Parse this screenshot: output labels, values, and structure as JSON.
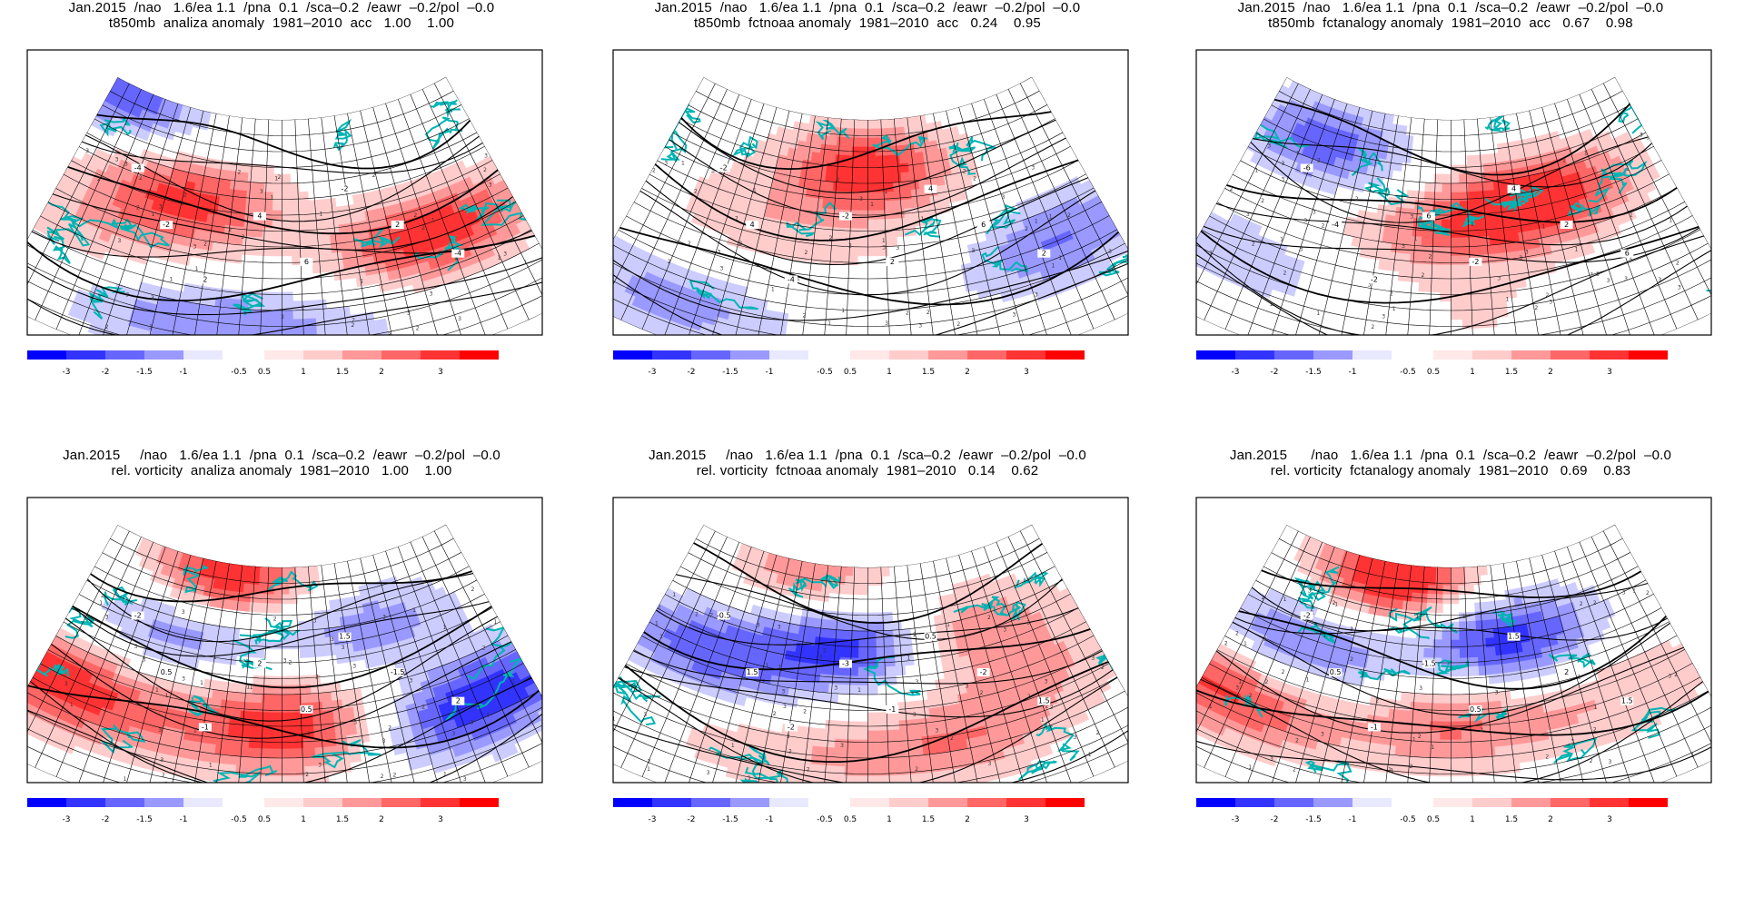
{
  "panels": [
    {
      "id": "p1",
      "title1": "Jan.2015  /nao   1.6/ea 1.1  /pna  0.1  /sca–0.2  /eawr  –0.2/pol  –0.0",
      "title2": "t850mb  analiza anomaly  1981–2010  acc   1.00    1.00",
      "pattern": [
        [
          0.28,
          0.35,
          2.2
        ],
        [
          0.82,
          0.55,
          2.4
        ],
        [
          0.06,
          0.05,
          -1.8
        ],
        [
          0.3,
          0.82,
          -1.2
        ],
        [
          0.55,
          0.82,
          -0.8
        ],
        [
          0.12,
          0.6,
          0.9
        ]
      ],
      "labels": [
        "-4",
        "-2",
        "2",
        "4",
        "6",
        "-2",
        "2",
        "-4"
      ]
    },
    {
      "id": "p2",
      "title1": "Jan.2015  /nao   1.6/ea 1.1  /pna  0.1  /sca–0.2  /eawr  –0.2/pol  –0.0",
      "title2": "t850mb  fctnoaa anomaly  1981–2010  acc   0.24    0.95",
      "pattern": [
        [
          0.5,
          0.2,
          2.4
        ],
        [
          0.25,
          0.45,
          0.8
        ],
        [
          0.88,
          0.62,
          -1.6
        ],
        [
          0.15,
          0.85,
          -1.2
        ],
        [
          0.6,
          0.55,
          0.4
        ]
      ],
      "labels": [
        "-2",
        "4",
        "-4",
        "-2",
        "2",
        "4",
        "6",
        "2"
      ]
    },
    {
      "id": "p3",
      "title1": "Jan.2015  /nao   1.6/ea 1.1  /pna  0.1  /sca–0.2  /eawr  –0.2/pol  –0.0",
      "title2": "t850mb  fctanalogy anomaly  1981–2010  acc   0.67    0.98",
      "pattern": [
        [
          0.7,
          0.35,
          2.6
        ],
        [
          0.45,
          0.45,
          1.2
        ],
        [
          0.18,
          0.18,
          -1.8
        ],
        [
          0.1,
          0.7,
          -0.8
        ],
        [
          0.55,
          0.8,
          0.5
        ]
      ],
      "labels": [
        "-6",
        "-4",
        "-2",
        "6",
        "-2",
        "4",
        "2",
        "6"
      ]
    },
    {
      "id": "p4",
      "title1": "Jan.2015     /nao   1.6/ea 1.1  /pna  0.1  /sca–0.2  /eawr  –0.2/pol  –0.0",
      "title2": "rel. vorticity  analiza anomaly  1981–2010   1.00    1.00",
      "pattern": [
        [
          0.35,
          0.06,
          2.6
        ],
        [
          0.28,
          0.3,
          -1.6
        ],
        [
          0.7,
          0.28,
          -1.4
        ],
        [
          0.05,
          0.65,
          2.4
        ],
        [
          0.52,
          0.65,
          2.3
        ],
        [
          0.88,
          0.68,
          -2.6
        ],
        [
          0.5,
          0.45,
          0.6
        ]
      ],
      "labels": [
        "-2",
        "0.5",
        "-1",
        "2",
        "0.5",
        "1.5",
        "-1.5",
        "2"
      ]
    },
    {
      "id": "p5",
      "title1": "Jan.2015     /nao   1.6/ea 1.1  /pna  0.1  /sca–0.2  /eawr  –0.2/pol  –0.0",
      "title2": "rel. vorticity  fctnoaa anomaly  1981–2010   0.14    0.62",
      "pattern": [
        [
          0.48,
          0.3,
          -2.6
        ],
        [
          0.15,
          0.45,
          -1.8
        ],
        [
          0.72,
          0.3,
          1.8
        ],
        [
          0.3,
          0.75,
          0.8
        ],
        [
          0.65,
          0.72,
          1.4
        ],
        [
          0.9,
          0.55,
          0.8
        ],
        [
          0.35,
          0.05,
          1.6
        ]
      ],
      "labels": [
        "-0.5",
        "1.5",
        "-2",
        "-3",
        "-1",
        "0.5",
        "-2",
        "1.5"
      ]
    },
    {
      "id": "p6",
      "title1": "Jan.2015      /nao   1.6/ea 1.1  /pna  0.1  /sca–0.2  /eawr  –0.2/pol  –0.0",
      "title2": "rel. vorticity  fctanalogy anomaly  1981–2010   0.69    0.83",
      "pattern": [
        [
          0.35,
          0.06,
          2.8
        ],
        [
          0.18,
          0.42,
          -1.8
        ],
        [
          0.62,
          0.3,
          -2.4
        ],
        [
          0.05,
          0.68,
          2.2
        ],
        [
          0.5,
          0.62,
          1.5
        ],
        [
          0.88,
          0.62,
          0.9
        ],
        [
          0.45,
          0.45,
          0.3
        ]
      ],
      "labels": [
        "-2",
        "0.5",
        "-1",
        "-1.5",
        "0.5",
        "1.5",
        "2",
        "1.5"
      ]
    }
  ],
  "colorbar": {
    "ticks_neg": [
      "-3",
      "-2",
      "-1.5",
      "-1",
      "-0.5"
    ],
    "ticks_pos": [
      "0.5",
      "1",
      "1.5",
      "2",
      "3"
    ],
    "colors_neg": [
      "#0000ff",
      "#3333ff",
      "#6666ff",
      "#9999ff",
      "#ccccff",
      "#e8e8ff"
    ],
    "colors_pos": [
      "#ffe8e8",
      "#ffcccc",
      "#ff9999",
      "#ff6666",
      "#ff3333",
      "#ff0000"
    ]
  },
  "colors": {
    "coast": "#00b4b4",
    "grid": "#000000"
  }
}
